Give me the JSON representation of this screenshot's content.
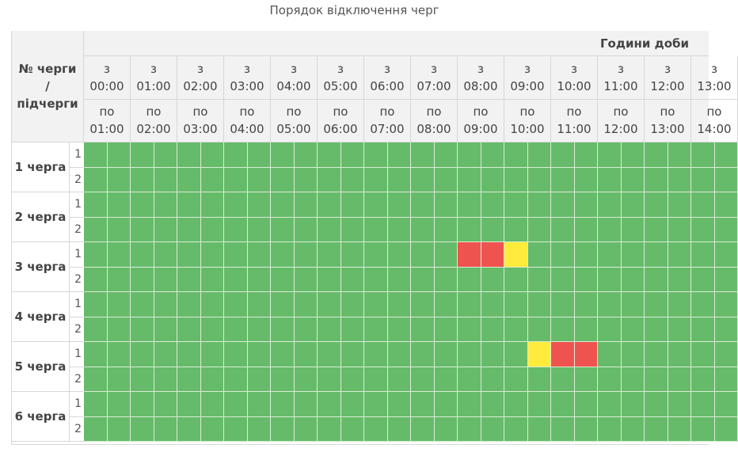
{
  "title": "Порядок відключення черг",
  "table": {
    "corner_lines": [
      "№ черги",
      "/",
      "підчерги"
    ],
    "hours_title": "Години доби",
    "from_prefix": "з",
    "to_prefix": "по",
    "hours": [
      {
        "from": "00:00",
        "to": "01:00"
      },
      {
        "from": "01:00",
        "to": "02:00"
      },
      {
        "from": "02:00",
        "to": "03:00"
      },
      {
        "from": "03:00",
        "to": "04:00"
      },
      {
        "from": "04:00",
        "to": "05:00"
      },
      {
        "from": "05:00",
        "to": "06:00"
      },
      {
        "from": "06:00",
        "to": "07:00"
      },
      {
        "from": "07:00",
        "to": "08:00"
      },
      {
        "from": "08:00",
        "to": "09:00"
      },
      {
        "from": "09:00",
        "to": "10:00"
      },
      {
        "from": "10:00",
        "to": "11:00"
      },
      {
        "from": "11:00",
        "to": "12:00"
      },
      {
        "from": "12:00",
        "to": "13:00"
      },
      {
        "from": "13:00",
        "to": "14:00"
      }
    ],
    "colors": {
      "on": "#66bb6a",
      "off": "#ef5350",
      "maybe": "#ffeb3b"
    },
    "queues": [
      {
        "label": "1 черга",
        "subqueues": [
          {
            "label": "1",
            "slots": [
              "on",
              "on",
              "on",
              "on",
              "on",
              "on",
              "on",
              "on",
              "on",
              "on",
              "on",
              "on",
              "on",
              "on",
              "on",
              "on",
              "on",
              "on",
              "on",
              "on",
              "on",
              "on",
              "on",
              "on",
              "on",
              "on",
              "on",
              "on"
            ]
          },
          {
            "label": "2",
            "slots": [
              "on",
              "on",
              "on",
              "on",
              "on",
              "on",
              "on",
              "on",
              "on",
              "on",
              "on",
              "on",
              "on",
              "on",
              "on",
              "on",
              "on",
              "on",
              "on",
              "on",
              "on",
              "on",
              "on",
              "on",
              "on",
              "on",
              "on",
              "on"
            ]
          }
        ]
      },
      {
        "label": "2 черга",
        "subqueues": [
          {
            "label": "1",
            "slots": [
              "on",
              "on",
              "on",
              "on",
              "on",
              "on",
              "on",
              "on",
              "on",
              "on",
              "on",
              "on",
              "on",
              "on",
              "on",
              "on",
              "on",
              "on",
              "on",
              "on",
              "on",
              "on",
              "on",
              "on",
              "on",
              "on",
              "on",
              "on"
            ]
          },
          {
            "label": "2",
            "slots": [
              "on",
              "on",
              "on",
              "on",
              "on",
              "on",
              "on",
              "on",
              "on",
              "on",
              "on",
              "on",
              "on",
              "on",
              "on",
              "on",
              "on",
              "on",
              "on",
              "on",
              "on",
              "on",
              "on",
              "on",
              "on",
              "on",
              "on",
              "on"
            ]
          }
        ]
      },
      {
        "label": "3 черга",
        "subqueues": [
          {
            "label": "1",
            "slots": [
              "on",
              "on",
              "on",
              "on",
              "on",
              "on",
              "on",
              "on",
              "on",
              "on",
              "on",
              "on",
              "on",
              "on",
              "on",
              "on",
              "off",
              "off",
              "maybe",
              "on",
              "on",
              "on",
              "on",
              "on",
              "on",
              "on",
              "on",
              "on"
            ]
          },
          {
            "label": "2",
            "slots": [
              "on",
              "on",
              "on",
              "on",
              "on",
              "on",
              "on",
              "on",
              "on",
              "on",
              "on",
              "on",
              "on",
              "on",
              "on",
              "on",
              "on",
              "on",
              "on",
              "on",
              "on",
              "on",
              "on",
              "on",
              "on",
              "on",
              "on",
              "on"
            ]
          }
        ]
      },
      {
        "label": "4 черга",
        "subqueues": [
          {
            "label": "1",
            "slots": [
              "on",
              "on",
              "on",
              "on",
              "on",
              "on",
              "on",
              "on",
              "on",
              "on",
              "on",
              "on",
              "on",
              "on",
              "on",
              "on",
              "on",
              "on",
              "on",
              "on",
              "on",
              "on",
              "on",
              "on",
              "on",
              "on",
              "on",
              "on"
            ]
          },
          {
            "label": "2",
            "slots": [
              "on",
              "on",
              "on",
              "on",
              "on",
              "on",
              "on",
              "on",
              "on",
              "on",
              "on",
              "on",
              "on",
              "on",
              "on",
              "on",
              "on",
              "on",
              "on",
              "on",
              "on",
              "on",
              "on",
              "on",
              "on",
              "on",
              "on",
              "on"
            ]
          }
        ]
      },
      {
        "label": "5 черга",
        "subqueues": [
          {
            "label": "1",
            "slots": [
              "on",
              "on",
              "on",
              "on",
              "on",
              "on",
              "on",
              "on",
              "on",
              "on",
              "on",
              "on",
              "on",
              "on",
              "on",
              "on",
              "on",
              "on",
              "on",
              "maybe",
              "off",
              "off",
              "on",
              "on",
              "on",
              "on",
              "on",
              "on"
            ]
          },
          {
            "label": "2",
            "slots": [
              "on",
              "on",
              "on",
              "on",
              "on",
              "on",
              "on",
              "on",
              "on",
              "on",
              "on",
              "on",
              "on",
              "on",
              "on",
              "on",
              "on",
              "on",
              "on",
              "on",
              "on",
              "on",
              "on",
              "on",
              "on",
              "on",
              "on",
              "on"
            ]
          }
        ]
      },
      {
        "label": "6 черга",
        "subqueues": [
          {
            "label": "1",
            "slots": [
              "on",
              "on",
              "on",
              "on",
              "on",
              "on",
              "on",
              "on",
              "on",
              "on",
              "on",
              "on",
              "on",
              "on",
              "on",
              "on",
              "on",
              "on",
              "on",
              "on",
              "on",
              "on",
              "on",
              "on",
              "on",
              "on",
              "on",
              "on"
            ]
          },
          {
            "label": "2",
            "slots": [
              "on",
              "on",
              "on",
              "on",
              "on",
              "on",
              "on",
              "on",
              "on",
              "on",
              "on",
              "on",
              "on",
              "on",
              "on",
              "on",
              "on",
              "on",
              "on",
              "on",
              "on",
              "on",
              "on",
              "on",
              "on",
              "on",
              "on",
              "on"
            ]
          }
        ]
      }
    ]
  }
}
